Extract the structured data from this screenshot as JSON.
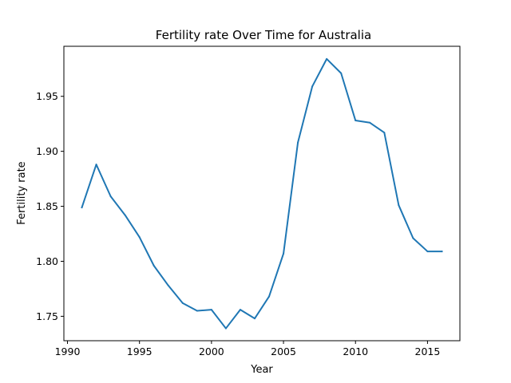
{
  "chart_data": {
    "type": "line",
    "title": "Fertility rate Over Time for Australia",
    "xlabel": "Year",
    "ylabel": "Fertility rate",
    "xlim": [
      1989.75,
      2017.25
    ],
    "ylim": [
      1.7278,
      1.9955
    ],
    "xticks": [
      1990,
      1995,
      2000,
      2005,
      2010,
      2015
    ],
    "yticks": [
      1.75,
      1.8,
      1.85,
      1.9,
      1.95
    ],
    "ytick_labels": [
      "1.75",
      "1.80",
      "1.85",
      "1.90",
      "1.95"
    ],
    "grid": false,
    "color": "#1f77b4",
    "x": [
      1991,
      1992,
      1993,
      1994,
      1995,
      1996,
      1997,
      1998,
      1999,
      2000,
      2001,
      2002,
      2003,
      2004,
      2005,
      2006,
      2007,
      2008,
      2009,
      2010,
      2011,
      2012,
      2013,
      2014,
      2015,
      2016
    ],
    "y": [
      1.849,
      1.888,
      1.859,
      1.842,
      1.822,
      1.796,
      1.778,
      1.762,
      1.755,
      1.756,
      1.739,
      1.756,
      1.748,
      1.768,
      1.807,
      1.908,
      1.959,
      1.984,
      1.971,
      1.928,
      1.926,
      1.917,
      1.851,
      1.821,
      1.809,
      1.809
    ]
  }
}
